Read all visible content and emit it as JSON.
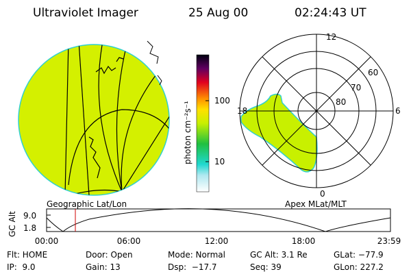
{
  "header": {
    "title": "Ultraviolet Imager",
    "date": "25 Aug 00",
    "time": "02:24:43 UT"
  },
  "colorbar": {
    "label": "photon cm⁻²s⁻¹",
    "ticks": [
      "100",
      "10"
    ]
  },
  "geographic": {
    "label": "Geographic Lat/Lon"
  },
  "polar": {
    "label": "Apex MLat/MLT",
    "mlt_labels": [
      "12",
      "18",
      "6",
      "0"
    ],
    "lat_labels": [
      "60",
      "70",
      "80"
    ]
  },
  "altitude_plot": {
    "ylabel": "GC Alt",
    "yticks": [
      "9.0",
      "1.8"
    ],
    "xticks": [
      "00:00",
      "06:00",
      "12:00",
      "18:00",
      "23:59"
    ]
  },
  "info": {
    "rows": [
      [
        "Flt: HOME",
        "Door: Open",
        "Mode: Normal",
        "GC Alt: 3.1 Re",
        "GLat: −77.9"
      ],
      [
        "IP:  9.0",
        "Gain: 13",
        "Dsp:  −17.7",
        "Seq: 39",
        "GLon: 227.2"
      ]
    ]
  }
}
